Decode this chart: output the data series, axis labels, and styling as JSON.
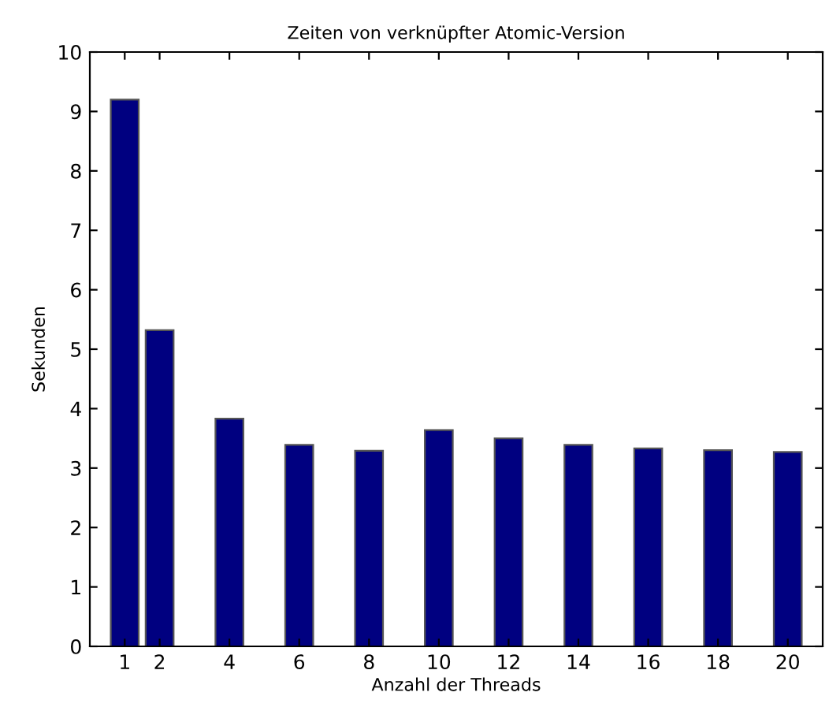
{
  "chart_data": {
    "type": "bar",
    "title": "Zeiten von verknüpfter Atomic-Version",
    "xlabel": "Anzahl der Threads",
    "ylabel": "Sekunden",
    "x": [
      1,
      2,
      4,
      6,
      8,
      10,
      12,
      14,
      16,
      18,
      20
    ],
    "values": [
      9.2,
      5.32,
      3.83,
      3.39,
      3.29,
      3.64,
      3.5,
      3.39,
      3.33,
      3.3,
      3.27
    ],
    "color": "#000080",
    "xlim": [
      0,
      21
    ],
    "xticks": [
      1,
      2,
      4,
      6,
      8,
      10,
      12,
      14,
      16,
      18,
      20
    ],
    "ylim": [
      0,
      10
    ],
    "yticks": [
      0,
      1,
      2,
      3,
      4,
      5,
      6,
      7,
      8,
      9,
      10
    ],
    "grid": false
  }
}
